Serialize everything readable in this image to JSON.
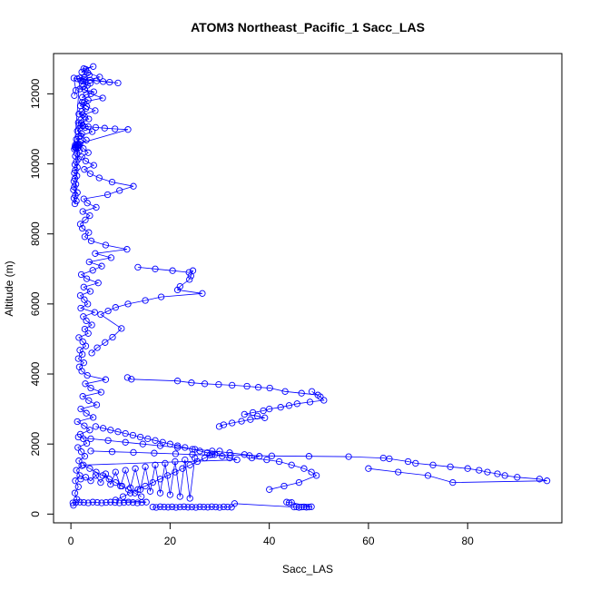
{
  "chart_data": {
    "type": "scatter",
    "title": "ATOM3 Northeast_Pacific_1 Sacc_LAS",
    "xlabel": "Sacc_LAS",
    "ylabel": "Altitude (m)",
    "xlim": [
      -3.5,
      99
    ],
    "ylim": [
      -250,
      13150
    ],
    "x_ticks": [
      0,
      20,
      40,
      60,
      80
    ],
    "y_ticks": [
      0,
      2000,
      4000,
      6000,
      8000,
      10000,
      12000
    ],
    "grid": false,
    "marker": "open-circle",
    "connected": true,
    "color": "#0000ff",
    "series": [
      {
        "x": [
          0.5,
          1.2,
          0.8,
          1.5,
          0.9,
          1.8,
          1.1,
          2.2,
          1.6,
          2.8,
          2.1,
          1.4,
          3.2,
          2.5,
          1.9,
          3.8,
          2.7,
          1.3,
          4.5,
          3.1,
          2.0,
          5.2,
          3.6,
          2.4,
          6.1,
          4.0,
          2.9,
          7.0,
          3.3,
          2.2,
          1.7,
          2.6,
          1.5,
          2.3,
          1.8,
          3.0,
          2.4,
          1.6,
          3.5,
          2.8,
          4.2,
          3.1,
          2.5,
          4.8,
          2.0,
          3.4,
          2.7,
          1.9,
          3.9,
          2.6,
          5.5,
          3.2,
          2.1,
          4.4,
          6.2,
          3.7,
          8.1,
          4.9,
          11.3,
          7.0,
          4.1,
          2.8,
          3.6,
          2.3,
          1.9,
          2.9,
          3.8,
          2.4,
          5.1,
          3.3,
          2.6,
          7.4,
          9.8,
          12.6,
          8.3,
          5.7,
          3.9,
          2.7,
          4.6,
          3.0,
          2.2,
          3.5,
          2.5,
          1.8,
          3.1,
          2.0,
          4.3,
          2.9,
          2.1,
          3.6,
          2.4,
          4.9,
          3.2,
          2.3,
          6.4,
          4.0,
          2.8,
          3.3,
          2.5,
          5.8,
          3.4,
          2.6,
          4.5,
          3.0,
          2.2,
          3.7,
          2.7,
          2.0,
          3.9,
          2.5,
          1.8,
          4.6,
          3.1,
          2.3,
          3.5,
          2.6,
          1.9,
          3.0,
          2.2,
          1.6,
          2.8,
          2.0,
          1.5,
          2.4,
          1.8,
          1.3,
          2.2,
          1.6,
          1.1,
          1.9,
          1.4,
          1.0,
          1.7,
          1.2,
          0.9,
          1.5,
          1.1,
          0.8,
          1.3,
          0.9,
          0.7,
          1.2,
          0.8,
          0.6,
          1.0,
          0.7,
          0.5,
          1.3,
          0.9,
          0.6,
          1.1,
          0.8,
          1.6,
          2.4,
          3.5,
          5.0,
          6.8,
          8.9,
          11.5,
          1.2,
          0.9,
          1.6,
          1.1,
          0.8,
          1.4,
          1.0,
          0.7,
          1.8,
          1.3,
          2.6,
          3.9,
          5.2,
          6.5,
          7.8,
          9.5,
          0.6,
          1.0,
          0.7
        ],
        "y": [
          250,
          420,
          600,
          780,
          950,
          1100,
          1250,
          1380,
          1520,
          1650,
          1780,
          1900,
          2020,
          2150,
          2280,
          2400,
          2520,
          2640,
          2760,
          2880,
          3000,
          3120,
          3240,
          3360,
          3480,
          3600,
          3720,
          3840,
          3960,
          4080,
          4200,
          4320,
          4440,
          4560,
          4680,
          4800,
          4920,
          5040,
          5160,
          5280,
          5400,
          5520,
          5640,
          5760,
          5880,
          6000,
          6120,
          6240,
          6360,
          6480,
          6600,
          6720,
          6840,
          6960,
          7080,
          7200,
          7320,
          7440,
          7560,
          7680,
          7800,
          7920,
          8040,
          8160,
          8280,
          8400,
          8520,
          8640,
          8760,
          8880,
          9000,
          9120,
          9240,
          9360,
          9480,
          9600,
          9720,
          9840,
          9960,
          10080,
          10200,
          10320,
          10440,
          10560,
          10680,
          10800,
          10920,
          11040,
          11160,
          11280,
          11400,
          11520,
          11640,
          11760,
          11880,
          12000,
          12120,
          12240,
          12360,
          12480,
          12600,
          12720,
          12780,
          12700,
          12620,
          12540,
          12460,
          12380,
          12300,
          12220,
          12140,
          12060,
          11980,
          11900,
          11820,
          11740,
          11660,
          11580,
          11500,
          11420,
          11340,
          11260,
          11180,
          11100,
          11020,
          10940,
          10860,
          10780,
          10700,
          10620,
          10540,
          10460,
          10380,
          10300,
          10220,
          10140,
          10060,
          9980,
          9900,
          9820,
          9740,
          9660,
          9580,
          9500,
          9420,
          9340,
          9260,
          9180,
          9100,
          9020,
          8940,
          8860,
          11100,
          11080,
          11060,
          11040,
          11020,
          11000,
          10980,
          10560,
          10540,
          10520,
          10500,
          10480,
          10460,
          10440,
          10420,
          12450,
          12430,
          12410,
          12390,
          12370,
          12350,
          12330,
          12310,
          12450,
          12100,
          11950
        ]
      },
      {
        "x": [
          13.5,
          17.0,
          20.5,
          23.8,
          24.6,
          24.2,
          23.9,
          22.0,
          21.5,
          26.5,
          18.2,
          15.0,
          11.5,
          9.0,
          7.5,
          6.0,
          10.2,
          8.4,
          6.9,
          5.3,
          4.2
        ],
        "y": [
          7050,
          7000,
          6950,
          6900,
          6950,
          6800,
          6700,
          6500,
          6400,
          6300,
          6200,
          6100,
          6000,
          5900,
          5800,
          5700,
          5300,
          5050,
          4900,
          4750,
          4600
        ]
      },
      {
        "x": [
          11.4,
          12.2,
          21.5,
          24.3,
          27.0,
          29.8,
          32.5,
          35.5,
          37.8,
          40.1,
          43.2,
          46.5,
          49.8,
          48.6,
          50.3,
          51.0,
          48.2,
          45.6,
          44.0,
          42.3,
          40.0,
          38.8,
          36.7,
          35.0,
          37.6,
          39.1,
          36.2,
          34.4,
          32.5,
          30.8,
          29.9
        ],
        "y": [
          3900,
          3850,
          3800,
          3750,
          3720,
          3700,
          3680,
          3650,
          3620,
          3600,
          3500,
          3450,
          3400,
          3500,
          3350,
          3250,
          3200,
          3150,
          3100,
          3050,
          3000,
          2950,
          2900,
          2850,
          2800,
          2750,
          2700,
          2650,
          2600,
          2550,
          2500
        ]
      },
      {
        "x": [
          4.0,
          8.3,
          12.6,
          16.8,
          21.1,
          24.5,
          28.0,
          32.2,
          36.0,
          40.5,
          48.0,
          56.0,
          63.0,
          64.2,
          68.0,
          69.5,
          73.0,
          76.5,
          80.0,
          82.3,
          84.0,
          86.0,
          87.5,
          90.0,
          94.5,
          96.0,
          77.0,
          72.0,
          66.0,
          60.0
        ],
        "y": [
          1800,
          1780,
          1760,
          1740,
          1720,
          1700,
          1690,
          1680,
          1670,
          1660,
          1650,
          1640,
          1600,
          1580,
          1500,
          1450,
          1400,
          1350,
          1300,
          1250,
          1200,
          1150,
          1100,
          1050,
          1000,
          950,
          900,
          1100,
          1200,
          1300
        ]
      },
      {
        "x": [
          16.5,
          17.2,
          18.0,
          18.8,
          19.6,
          20.4,
          21.2,
          22.0,
          22.8,
          23.6,
          24.4,
          25.2,
          26.0,
          26.8,
          27.6,
          28.4,
          29.2,
          30.0,
          30.8,
          31.6,
          32.4,
          33.0,
          45.0,
          45.5,
          46.0,
          46.5,
          47.0,
          47.5,
          48.0,
          48.5,
          44.5,
          44.0,
          43.5
        ],
        "y": [
          200,
          190,
          210,
          200,
          195,
          205,
          190,
          200,
          210,
          195,
          200,
          190,
          205,
          200,
          195,
          210,
          200,
          190,
          205,
          200,
          195,
          300,
          200,
          210,
          190,
          200,
          205,
          195,
          200,
          210,
          330,
          320,
          340
        ]
      },
      {
        "x": [
          0.4,
          1.0,
          1.8,
          2.6,
          3.5,
          4.4,
          5.3,
          6.2,
          7.1,
          8.0,
          8.9,
          9.8,
          10.7,
          11.6,
          12.5,
          13.4,
          14.3,
          15.2,
          9.0,
          10.5,
          12.0,
          13.5,
          15.0,
          16.5,
          18.0,
          19.5,
          21.0,
          22.5,
          24.0,
          25.5,
          27.0,
          28.5,
          30.0
        ],
        "y": [
          320,
          330,
          340,
          330,
          320,
          340,
          330,
          320,
          330,
          340,
          330,
          320,
          330,
          340,
          330,
          320,
          330,
          340,
          400,
          500,
          600,
          700,
          800,
          900,
          1000,
          1100,
          1200,
          1300,
          1400,
          1500,
          1600,
          1700,
          1800
        ]
      },
      {
        "x": [
          1.5,
          4.0,
          7.5,
          11.0,
          14.5,
          18.0,
          21.5,
          25.0,
          28.5,
          32.0,
          35.0,
          38.0,
          36.5,
          39.5,
          42.0,
          44.5,
          47.0,
          48.5,
          49.5,
          46.0,
          43.0,
          40.0
        ],
        "y": [
          2200,
          2150,
          2100,
          2050,
          2000,
          1950,
          1900,
          1850,
          1800,
          1750,
          1700,
          1650,
          1600,
          1550,
          1500,
          1400,
          1300,
          1200,
          1100,
          900,
          800,
          700
        ]
      },
      {
        "x": [
          5.0,
          6.5,
          8.0,
          9.5,
          11.0,
          12.5,
          14.0,
          15.5,
          17.0,
          18.5,
          20.0,
          21.5,
          23.0,
          24.5,
          26.0,
          27.5,
          29.0,
          30.5,
          32.0,
          33.5,
          2.5,
          3.8,
          5.1,
          6.4,
          7.7,
          9.0,
          10.3,
          11.6,
          12.9,
          14.2
        ],
        "y": [
          2500,
          2450,
          2400,
          2350,
          2300,
          2250,
          2200,
          2150,
          2100,
          2050,
          2000,
          1950,
          1900,
          1850,
          1800,
          1750,
          1700,
          1650,
          1600,
          1550,
          1400,
          1300,
          1200,
          1100,
          1000,
          900,
          800,
          700,
          600,
          500
        ]
      },
      {
        "x": [
          2.0,
          3.0,
          4.0,
          5.0,
          6.0,
          7.0,
          8.0,
          9.0,
          10.0,
          11.0,
          12.0,
          13.0,
          14.0,
          15.0,
          16.0,
          17.0,
          18.0,
          19.0,
          20.0,
          21.0,
          22.0,
          23.0,
          24.0,
          25.0
        ],
        "y": [
          1000,
          1050,
          950,
          1100,
          900,
          1150,
          850,
          1200,
          800,
          1250,
          750,
          1300,
          700,
          1350,
          650,
          1400,
          600,
          1450,
          550,
          1500,
          500,
          1550,
          450,
          1600
        ]
      }
    ]
  }
}
